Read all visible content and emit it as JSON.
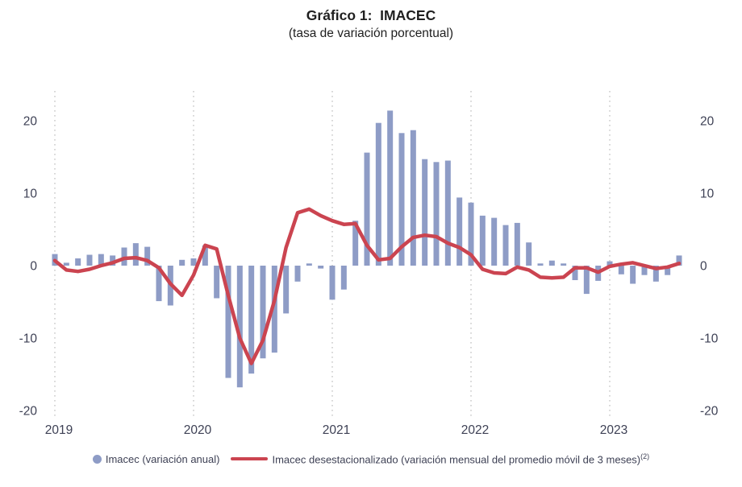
{
  "title": "Gráfico 1:  IMACEC",
  "subtitle": "(tasa de variación porcentual)",
  "legend": {
    "bar_label": "Imacec (variación anual)",
    "line_label": "Imacec desestacionalizado (variación mensual del promedio móvil de 3 meses)",
    "line_label_sup": "(2)"
  },
  "colors": {
    "bar": "#8E9CC6",
    "line": "#CB4450",
    "axis_text": "#3E4155",
    "grid": "#C6C6C6",
    "title_text": "#1F1F1F"
  },
  "chart_data": {
    "type": "bar",
    "title": "Gráfico 1: IMACEC",
    "subtitle": "(tasa de variación porcentual)",
    "xlabel": "",
    "ylabel": "",
    "ylim": [
      -20,
      20
    ],
    "yticks": [
      -20,
      -10,
      0,
      10,
      20
    ],
    "y_axis_sides": [
      "left",
      "right"
    ],
    "grid": "vertical dotted lines at each January",
    "legend_position": "bottom",
    "x_tick_labels": [
      "2019",
      "2020",
      "2021",
      "2022",
      "2023"
    ],
    "months": [
      "2019-01",
      "2019-02",
      "2019-03",
      "2019-04",
      "2019-05",
      "2019-06",
      "2019-07",
      "2019-08",
      "2019-09",
      "2019-10",
      "2019-11",
      "2019-12",
      "2020-01",
      "2020-02",
      "2020-03",
      "2020-04",
      "2020-05",
      "2020-06",
      "2020-07",
      "2020-08",
      "2020-09",
      "2020-10",
      "2020-11",
      "2020-12",
      "2021-01",
      "2021-02",
      "2021-03",
      "2021-04",
      "2021-05",
      "2021-06",
      "2021-07",
      "2021-08",
      "2021-09",
      "2021-10",
      "2021-11",
      "2021-12",
      "2022-01",
      "2022-02",
      "2022-03",
      "2022-04",
      "2022-05",
      "2022-06",
      "2022-07",
      "2022-08",
      "2022-09",
      "2022-10",
      "2022-11",
      "2022-12",
      "2023-01",
      "2023-02",
      "2023-03",
      "2023-04",
      "2023-05",
      "2023-06",
      "2023-07"
    ],
    "series": [
      {
        "name": "Imacec (variación anual)",
        "type": "bar",
        "values": [
          1.6,
          0.4,
          1.0,
          1.5,
          1.6,
          1.4,
          2.5,
          3.1,
          2.6,
          -4.9,
          -5.5,
          0.8,
          1.0,
          2.8,
          -4.5,
          -15.5,
          -16.8,
          -14.9,
          -12.8,
          -12.0,
          -6.6,
          -2.2,
          0.3,
          -0.4,
          -4.7,
          -3.3,
          6.2,
          15.6,
          19.7,
          21.4,
          18.3,
          18.7,
          14.7,
          14.3,
          14.5,
          9.4,
          8.7,
          6.9,
          6.6,
          5.6,
          5.9,
          3.2,
          0.3,
          0.7,
          0.3,
          -2.0,
          -3.9,
          -2.1,
          0.6,
          -1.2,
          -2.5,
          -1.3,
          -2.2,
          -1.3,
          1.4
        ]
      },
      {
        "name": "Imacec desestacionalizado (variación mensual del promedio móvil de 3 meses)",
        "type": "line",
        "values": [
          0.7,
          -0.6,
          -0.8,
          -0.5,
          0.0,
          0.4,
          1.0,
          1.1,
          0.7,
          -0.3,
          -2.5,
          -4.1,
          -1.3,
          2.8,
          2.3,
          -4.1,
          -10.0,
          -13.5,
          -10.3,
          -4.8,
          2.5,
          7.3,
          7.8,
          6.9,
          6.2,
          5.7,
          5.8,
          2.8,
          0.8,
          1.0,
          2.6,
          3.9,
          4.2,
          4.0,
          3.1,
          2.5,
          1.5,
          -0.5,
          -1.0,
          -1.1,
          -0.2,
          -0.6,
          -1.6,
          -1.7,
          -1.6,
          -0.3,
          -0.3,
          -0.9,
          -0.1,
          0.2,
          0.4,
          0.0,
          -0.4,
          -0.2,
          0.3
        ]
      }
    ]
  }
}
